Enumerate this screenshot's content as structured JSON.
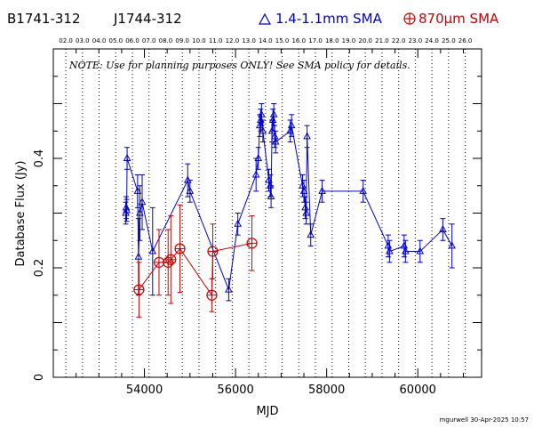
{
  "header": {
    "source1": "B1741-312",
    "source2": "J1744-312",
    "legend_blue": "1.4-1.1mm SMA",
    "legend_red": "870μm SMA",
    "note": "NOTE: Use for planning purposes ONLY!  See SMA policy for details.",
    "credit": "mgurwell 30-Apr-2025 10:57"
  },
  "colors": {
    "blue": "#0000cc",
    "red": "#cc0000",
    "axis": "#000000"
  },
  "chart_data": {
    "type": "scatter",
    "title": "",
    "xlabel": "MJD",
    "ylabel": "Database Flux (Jy)",
    "xlim": [
      52000,
      61400
    ],
    "ylim": [
      0,
      0.6
    ],
    "xticks": [
      54000,
      56000,
      58000,
      60000
    ],
    "yticks": [
      0,
      0.2,
      0.4
    ],
    "year_ticks": [
      "02.0",
      "03.0",
      "04.0",
      "05.0",
      "06.0",
      "07.0",
      "08.0",
      "09.0",
      "10.0",
      "11.0",
      "12.0",
      "13.0",
      "14.0",
      "15.0",
      "16.0",
      "17.0",
      "18.0",
      "19.0",
      "20.0",
      "21.0",
      "22.0",
      "23.0",
      "24.0",
      "25.0",
      "26.0"
    ],
    "year_positions": [
      52275,
      52640,
      53005,
      53371,
      53736,
      54101,
      54466,
      54832,
      55197,
      55562,
      55927,
      56293,
      56658,
      57023,
      57388,
      57754,
      58119,
      58484,
      58849,
      59215,
      59580,
      59945,
      60310,
      60676,
      61041
    ],
    "series": [
      {
        "name": "1.4-1.1mm SMA",
        "color": "blue",
        "marker": "triangle",
        "points": [
          [
            53590,
            0.3,
            0.02
          ],
          [
            53600,
            0.31,
            0.02
          ],
          [
            53610,
            0.305,
            0.02
          ],
          [
            53620,
            0.4,
            0.02
          ],
          [
            53850,
            0.34,
            0.03
          ],
          [
            53870,
            0.22,
            0.07
          ],
          [
            53900,
            0.3,
            0.05
          ],
          [
            53950,
            0.32,
            0.05
          ],
          [
            54180,
            0.23,
            0.08
          ],
          [
            54950,
            0.36,
            0.03
          ],
          [
            55000,
            0.34,
            0.02
          ],
          [
            55850,
            0.16,
            0.02
          ],
          [
            56050,
            0.28,
            0.02
          ],
          [
            56450,
            0.37,
            0.03
          ],
          [
            56500,
            0.4,
            0.02
          ],
          [
            56530,
            0.46,
            0.02
          ],
          [
            56550,
            0.47,
            0.02
          ],
          [
            56570,
            0.48,
            0.02
          ],
          [
            56600,
            0.45,
            0.02
          ],
          [
            56730,
            0.36,
            0.02
          ],
          [
            56760,
            0.35,
            0.02
          ],
          [
            56780,
            0.33,
            0.02
          ],
          [
            56800,
            0.45,
            0.02
          ],
          [
            56820,
            0.47,
            0.02
          ],
          [
            56840,
            0.48,
            0.02
          ],
          [
            56860,
            0.44,
            0.02
          ],
          [
            56880,
            0.43,
            0.02
          ],
          [
            57200,
            0.45,
            0.02
          ],
          [
            57230,
            0.46,
            0.02
          ],
          [
            57470,
            0.35,
            0.02
          ],
          [
            57500,
            0.34,
            0.02
          ],
          [
            57530,
            0.31,
            0.02
          ],
          [
            57550,
            0.3,
            0.02
          ],
          [
            57570,
            0.44,
            0.02
          ],
          [
            57650,
            0.26,
            0.02
          ],
          [
            57900,
            0.34,
            0.02
          ],
          [
            58800,
            0.34,
            0.02
          ],
          [
            59350,
            0.24,
            0.02
          ],
          [
            59380,
            0.23,
            0.02
          ],
          [
            59700,
            0.24,
            0.02
          ],
          [
            59730,
            0.23,
            0.02
          ],
          [
            60050,
            0.23,
            0.02
          ],
          [
            60550,
            0.27,
            0.02
          ],
          [
            60750,
            0.24,
            0.04
          ]
        ]
      },
      {
        "name": "870μm SMA",
        "color": "red",
        "marker": "circle-plus",
        "points": [
          [
            53880,
            0.16,
            0.05
          ],
          [
            54320,
            0.21,
            0.06
          ],
          [
            54520,
            0.21,
            0.06
          ],
          [
            54580,
            0.215,
            0.08
          ],
          [
            54780,
            0.235,
            0.08
          ],
          [
            55480,
            0.15,
            0.03
          ],
          [
            55500,
            0.23,
            0.05
          ],
          [
            56360,
            0.245,
            0.05
          ]
        ]
      }
    ]
  }
}
